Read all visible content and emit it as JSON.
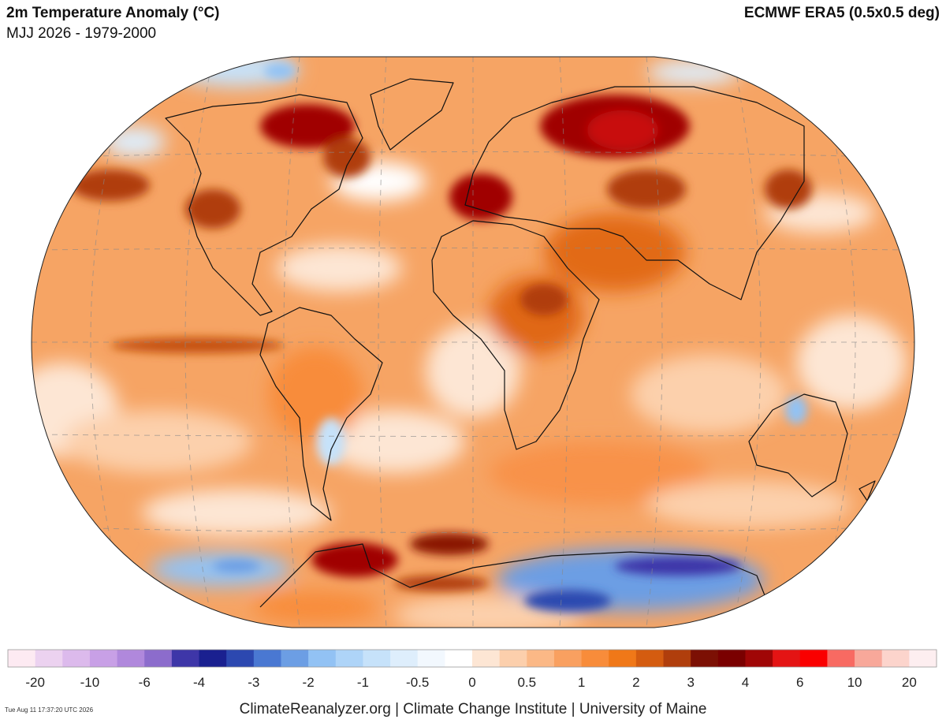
{
  "header": {
    "title": "2m Temperature Anomaly (°C)",
    "subtitle": "MJJ 2026 - 1979-2000",
    "source": "ECMWF ERA5 (0.5x0.5 deg)"
  },
  "colorbar": {
    "colors": [
      "#fdeaf2",
      "#ecd2f0",
      "#dcbaec",
      "#c8a0e6",
      "#b088dc",
      "#8c6ccc",
      "#6450bc",
      "#3e36a8",
      "#1a2090",
      "#2c48b0",
      "#4a78d2",
      "#6c9ee4",
      "#92c2f4",
      "#aed4f8",
      "#c6e2fa",
      "#deeefc",
      "#f2f8fe",
      "#ffffff",
      "#ffffff",
      "#fde6d4",
      "#fccfac",
      "#fbb886",
      "#f9a060",
      "#f88c3a",
      "#f07818",
      "#d45c10",
      "#b03e0c",
      "#7c1004",
      "#7a0000",
      "#a00606",
      "#c80e0e",
      "#e41414",
      "#fa0000",
      "#f86a62",
      "#f8a89a",
      "#fcd4cc",
      "#fdeef0"
    ],
    "labels": [
      -20,
      -10,
      -6,
      -4,
      -3,
      -2,
      -1,
      -0.5,
      0,
      0.5,
      1,
      2,
      3,
      4,
      6,
      10,
      20
    ]
  },
  "footer": {
    "credit": "ClimateReanalyzer.org | Climate Change Institute | University of Maine",
    "timestamp": "Tue Aug 11 17:37:20 UTC 2026"
  }
}
